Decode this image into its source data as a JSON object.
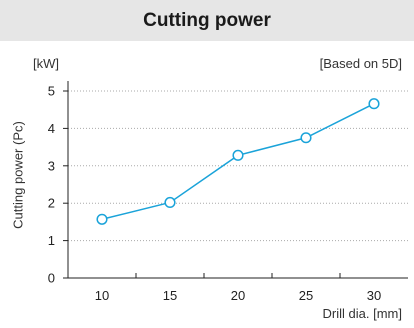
{
  "chart_data": {
    "type": "line",
    "title": "Cutting power",
    "unit_label": "[kW]",
    "note": "[Based on 5D]",
    "xlabel": "Drill dia. [mm]",
    "ylabel": "Cutting power (Pc)",
    "categories": [
      "10",
      "15",
      "20",
      "25",
      "30"
    ],
    "y_ticks": [
      "0",
      "1",
      "2",
      "3",
      "4",
      "5"
    ],
    "ylim": [
      0,
      5
    ],
    "grid": true,
    "series": [
      {
        "values": [
          1.57,
          2.02,
          3.28,
          3.75,
          4.66
        ]
      }
    ],
    "colors": {
      "line": "#1aa3d9",
      "marker_fill": "#ffffff",
      "grid": "#aaaaaa",
      "axis": "#222222",
      "title_bg": "#e6e6e6"
    }
  }
}
